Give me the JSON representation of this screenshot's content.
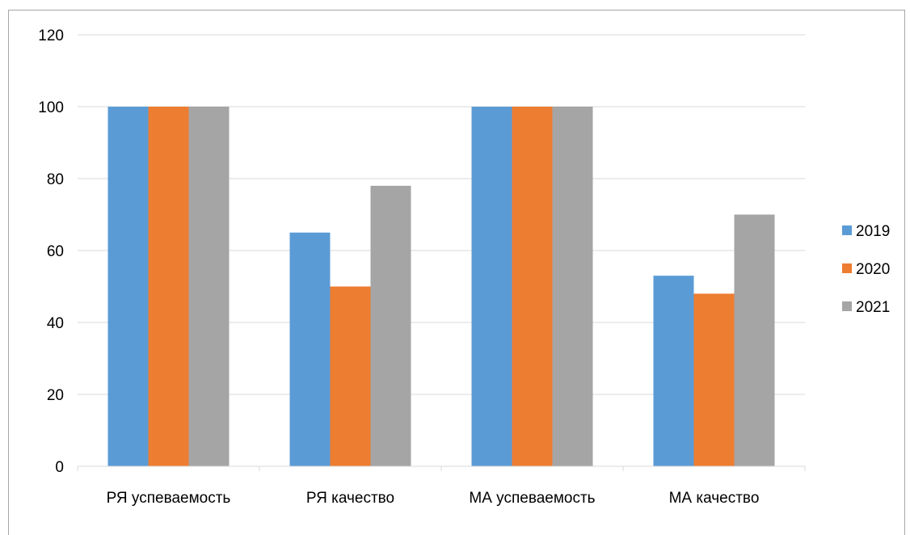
{
  "chart_data": {
    "type": "bar",
    "categories": [
      "РЯ успеваемость",
      "РЯ качество",
      "МА успеваемость",
      "МА качество"
    ],
    "series": [
      {
        "name": "2019",
        "values": [
          100,
          65,
          100,
          53
        ],
        "color": "#5b9bd5"
      },
      {
        "name": "2020",
        "values": [
          100,
          50,
          100,
          48
        ],
        "color": "#ed7d31"
      },
      {
        "name": "2021",
        "values": [
          100,
          78,
          100,
          70
        ],
        "color": "#a5a5a5"
      }
    ],
    "yticks": [
      "0",
      "20",
      "40",
      "60",
      "80",
      "100",
      "120"
    ],
    "ylim": [
      0,
      120
    ],
    "grid": true,
    "legend_position": "right",
    "title": "",
    "xlabel": "",
    "ylabel": ""
  }
}
